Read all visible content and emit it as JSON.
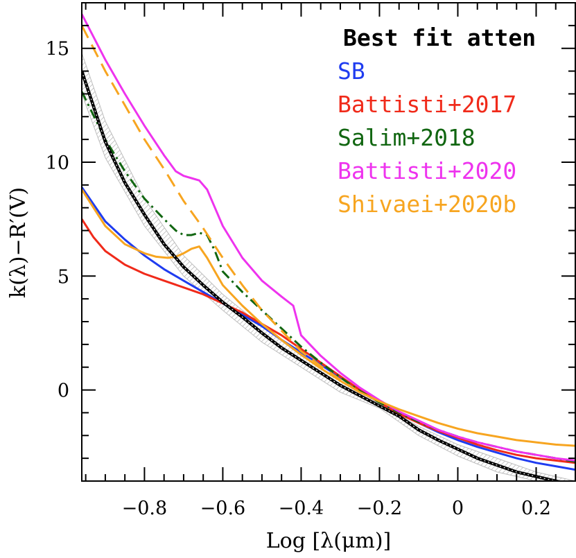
{
  "chart_data": {
    "type": "line",
    "title": "",
    "xlabel": "Log [λ(μm)]",
    "ylabel": "k(λ)−R′(V)",
    "xlim": [
      -0.96,
      0.3
    ],
    "ylim": [
      -4,
      17
    ],
    "xticks": [
      -0.8,
      -0.6,
      -0.4,
      -0.2,
      0,
      0.2
    ],
    "xtick_labels": [
      "−0.8",
      "−0.6",
      "−0.4",
      "−0.2",
      "0",
      "0.2"
    ],
    "yticks": [
      0,
      5,
      10,
      15
    ],
    "ytick_labels": [
      "0",
      "5",
      "10",
      "15"
    ],
    "legend_position": "top-right",
    "uncertainty_band": {
      "name": "Best fit atten",
      "upper": [
        [
          -0.96,
          14.8
        ],
        [
          -0.9,
          11.8
        ],
        [
          -0.8,
          8.4
        ],
        [
          -0.7,
          5.9
        ],
        [
          -0.6,
          4.2
        ],
        [
          -0.5,
          2.8
        ],
        [
          -0.4,
          1.5
        ],
        [
          -0.3,
          0.4
        ],
        [
          -0.2,
          -0.6
        ],
        [
          -0.1,
          -1.6
        ],
        [
          0.0,
          -2.4
        ],
        [
          0.1,
          -3.0
        ],
        [
          0.2,
          -3.6
        ],
        [
          0.3,
          -4.0
        ]
      ],
      "lower": [
        [
          -0.96,
          13.0
        ],
        [
          -0.9,
          10.2
        ],
        [
          -0.8,
          7.2
        ],
        [
          -0.7,
          5.0
        ],
        [
          -0.6,
          3.5
        ],
        [
          -0.5,
          2.1
        ],
        [
          -0.4,
          1.0
        ],
        [
          -0.3,
          -0.1
        ],
        [
          -0.2,
          -0.8
        ],
        [
          -0.1,
          -2.0
        ],
        [
          0.0,
          -2.9
        ],
        [
          0.1,
          -3.6
        ],
        [
          0.2,
          -4.0
        ],
        [
          0.3,
          -4.0
        ]
      ]
    },
    "series": [
      {
        "name": "Best fit atten",
        "color": "#000000",
        "dash": "solid",
        "x": [
          -0.96,
          -0.9,
          -0.85,
          -0.8,
          -0.75,
          -0.7,
          -0.65,
          -0.6,
          -0.55,
          -0.5,
          -0.45,
          -0.4,
          -0.35,
          -0.3,
          -0.25,
          -0.2,
          -0.15,
          -0.1,
          -0.05,
          0.0,
          0.05,
          0.1,
          0.15,
          0.2,
          0.25,
          0.3
        ],
        "y": [
          14.0,
          10.9,
          9.1,
          7.7,
          6.4,
          5.4,
          4.6,
          3.85,
          3.2,
          2.5,
          1.85,
          1.3,
          0.75,
          0.2,
          -0.25,
          -0.7,
          -1.15,
          -1.75,
          -2.2,
          -2.6,
          -3.0,
          -3.3,
          -3.6,
          -3.8,
          -4.0,
          -4.2
        ]
      },
      {
        "name": "SB",
        "color": "#1f3cf0",
        "dash": "solid",
        "x": [
          -0.96,
          -0.9,
          -0.85,
          -0.8,
          -0.75,
          -0.7,
          -0.65,
          -0.6,
          -0.55,
          -0.5,
          -0.45,
          -0.4,
          -0.35,
          -0.3,
          -0.25,
          -0.2,
          -0.15,
          -0.1,
          -0.05,
          0.0,
          0.05,
          0.1,
          0.15,
          0.2,
          0.25,
          0.3
        ],
        "y": [
          8.9,
          7.4,
          6.6,
          5.9,
          5.3,
          4.8,
          4.3,
          3.8,
          3.3,
          2.8,
          2.2,
          1.65,
          1.1,
          0.55,
          0.0,
          -0.5,
          -1.0,
          -1.45,
          -1.85,
          -2.2,
          -2.5,
          -2.75,
          -3.0,
          -3.2,
          -3.35,
          -3.5
        ]
      },
      {
        "name": "Battisti+2017",
        "color": "#f02a1a",
        "dash": "solid",
        "x": [
          -0.96,
          -0.93,
          -0.9,
          -0.85,
          -0.8,
          -0.75,
          -0.7,
          -0.65,
          -0.6,
          -0.55,
          -0.5,
          -0.45,
          -0.4,
          -0.35,
          -0.3,
          -0.25,
          -0.2,
          -0.15,
          -0.1,
          -0.05,
          0.0,
          0.05,
          0.1,
          0.15,
          0.2,
          0.25,
          0.3
        ],
        "y": [
          7.5,
          6.7,
          6.1,
          5.5,
          5.1,
          4.8,
          4.5,
          4.2,
          3.8,
          3.4,
          2.9,
          2.4,
          1.8,
          1.2,
          0.6,
          0.0,
          -0.55,
          -1.05,
          -1.45,
          -1.8,
          -2.1,
          -2.4,
          -2.65,
          -2.85,
          -3.0,
          -3.1,
          -3.2
        ]
      },
      {
        "name": "Salim+2018",
        "color": "#116611",
        "dash": "dashdot",
        "x": [
          -0.96,
          -0.9,
          -0.85,
          -0.8,
          -0.75,
          -0.72,
          -0.7,
          -0.68,
          -0.66,
          -0.64,
          -0.62,
          -0.6,
          -0.55,
          -0.5,
          -0.45,
          -0.4,
          -0.35,
          -0.3,
          -0.25,
          -0.2,
          -0.15,
          -0.1,
          -0.05,
          0.0,
          0.05,
          0.1,
          0.15,
          0.2,
          0.25,
          0.3
        ],
        "y": [
          13.1,
          11.0,
          9.6,
          8.4,
          7.5,
          7.0,
          6.8,
          6.8,
          6.9,
          6.8,
          6.1,
          5.2,
          4.3,
          3.5,
          2.7,
          1.9,
          1.2,
          0.55,
          -0.05,
          -0.55,
          -1.0,
          -1.4,
          -1.75,
          -2.05,
          -2.3,
          -2.5,
          -2.7,
          -2.85,
          -3.0,
          -3.15
        ]
      },
      {
        "name": "Battisti+2020",
        "color": "#ee33ee",
        "dash": "solid",
        "x": [
          -0.96,
          -0.9,
          -0.85,
          -0.8,
          -0.75,
          -0.72,
          -0.7,
          -0.68,
          -0.66,
          -0.64,
          -0.62,
          -0.6,
          -0.55,
          -0.5,
          -0.45,
          -0.42,
          -0.4,
          -0.35,
          -0.3,
          -0.25,
          -0.2,
          -0.15,
          -0.1,
          -0.05,
          0.0,
          0.05,
          0.1,
          0.15,
          0.2,
          0.25,
          0.3
        ],
        "y": [
          16.5,
          14.5,
          13.0,
          11.6,
          10.3,
          9.6,
          9.4,
          9.3,
          9.2,
          8.8,
          8.0,
          7.2,
          5.8,
          4.8,
          4.1,
          3.7,
          2.4,
          1.5,
          0.75,
          0.1,
          -0.45,
          -0.95,
          -1.35,
          -1.75,
          -2.05,
          -2.3,
          -2.5,
          -2.7,
          -2.85,
          -3.0,
          -3.1
        ]
      },
      {
        "name": "Shivaei+2020b (dashed)",
        "color": "#f7a520",
        "dash": "dashed",
        "x": [
          -0.96,
          -0.9,
          -0.85,
          -0.8,
          -0.75,
          -0.7,
          -0.65,
          -0.6,
          -0.55,
          -0.5,
          -0.45,
          -0.4,
          -0.35,
          -0.3,
          -0.25,
          -0.2
        ],
        "y": [
          16.0,
          14.0,
          12.5,
          11.0,
          9.7,
          8.3,
          7.1,
          5.8,
          4.6,
          3.5,
          2.6,
          1.7,
          1.05,
          0.45,
          -0.1,
          -0.5
        ]
      },
      {
        "name": "Shivaei+2020b",
        "color": "#f7a520",
        "dash": "solid",
        "x": [
          -0.96,
          -0.9,
          -0.85,
          -0.8,
          -0.77,
          -0.74,
          -0.72,
          -0.7,
          -0.68,
          -0.66,
          -0.64,
          -0.62,
          -0.6,
          -0.55,
          -0.5,
          -0.45,
          -0.4,
          -0.35,
          -0.3,
          -0.25,
          -0.2,
          -0.15,
          -0.1,
          -0.05,
          0.0,
          0.05,
          0.1,
          0.15,
          0.2,
          0.25,
          0.3
        ],
        "y": [
          8.8,
          7.2,
          6.4,
          6.0,
          5.85,
          5.8,
          5.85,
          6.0,
          6.2,
          6.3,
          5.8,
          5.2,
          4.6,
          3.7,
          2.9,
          2.2,
          1.55,
          0.95,
          0.4,
          -0.1,
          -0.5,
          -0.85,
          -1.15,
          -1.45,
          -1.7,
          -1.9,
          -2.05,
          -2.2,
          -2.3,
          -2.4,
          -2.45
        ]
      }
    ],
    "legend": [
      {
        "label": "Best fit atten",
        "color": "#000000"
      },
      {
        "label": "SB",
        "color": "#1f3cf0"
      },
      {
        "label": "Battisti+2017",
        "color": "#f02a1a"
      },
      {
        "label": "Salim+2018",
        "color": "#116611"
      },
      {
        "label": "Battisti+2020",
        "color": "#ee33ee"
      },
      {
        "label": "Shivaei+2020b",
        "color": "#f7a520"
      }
    ]
  }
}
